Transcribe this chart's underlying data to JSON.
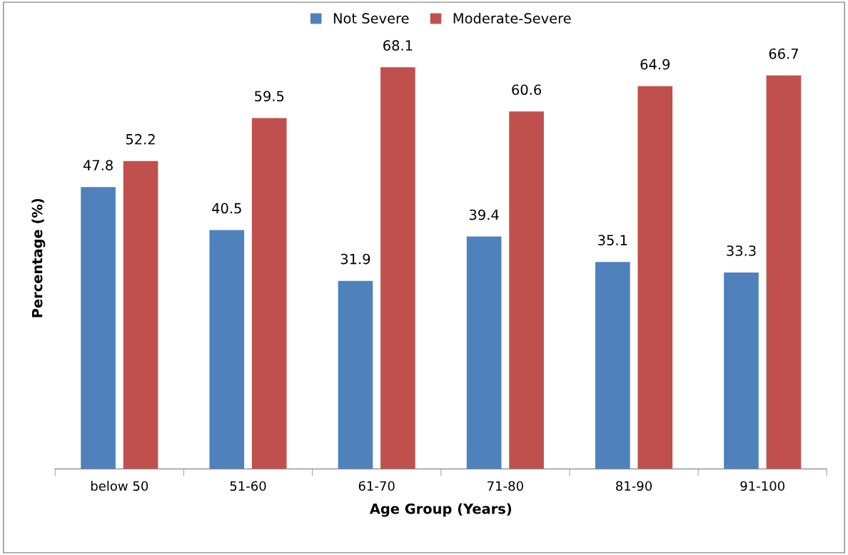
{
  "chart_data": {
    "type": "bar",
    "xlabel": "Age Group (Years)",
    "ylabel": "Percentage (%)",
    "categories": [
      "below 50",
      "51-60",
      "61-70",
      "71-80",
      "81-90",
      "91-100"
    ],
    "series": [
      {
        "name": "Not Severe",
        "color": "#4f81bd",
        "values": [
          47.8,
          40.5,
          31.9,
          39.4,
          35.1,
          33.3
        ]
      },
      {
        "name": "Moderate-Severe",
        "color": "#c0504d",
        "values": [
          52.2,
          59.5,
          68.1,
          60.6,
          64.9,
          66.7
        ]
      }
    ],
    "data_labels": true,
    "legend": "top",
    "grid": false,
    "tick_labels": "x"
  }
}
